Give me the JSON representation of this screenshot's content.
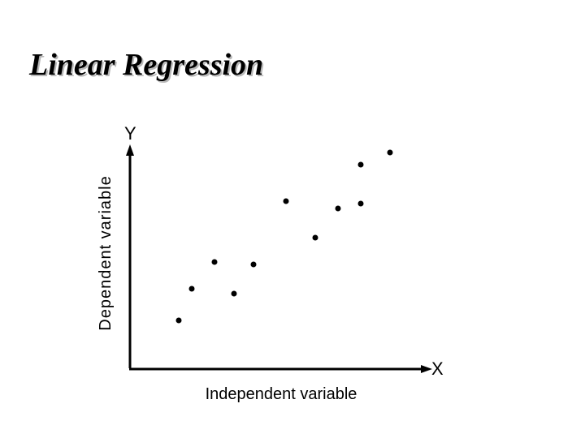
{
  "title": "Linear Regression",
  "chart_data": {
    "type": "scatter",
    "title": "Linear Regression",
    "xlabel": "Independent variable",
    "ylabel": "Dependent variable",
    "x_axis_symbol": "X",
    "y_axis_symbol": "Y",
    "xlim": [
      0,
      10
    ],
    "ylim": [
      0,
      10
    ],
    "grid": false,
    "points": [
      {
        "x": 1.5,
        "y": 2.0
      },
      {
        "x": 1.9,
        "y": 3.3
      },
      {
        "x": 2.6,
        "y": 4.4
      },
      {
        "x": 3.2,
        "y": 3.1
      },
      {
        "x": 3.8,
        "y": 4.3
      },
      {
        "x": 4.8,
        "y": 6.9
      },
      {
        "x": 5.7,
        "y": 5.4
      },
      {
        "x": 6.4,
        "y": 6.6
      },
      {
        "x": 7.1,
        "y": 8.4
      },
      {
        "x": 7.1,
        "y": 6.8
      },
      {
        "x": 8.0,
        "y": 8.9
      }
    ],
    "colors": {
      "points": "#000000",
      "axes": "#000000"
    }
  }
}
